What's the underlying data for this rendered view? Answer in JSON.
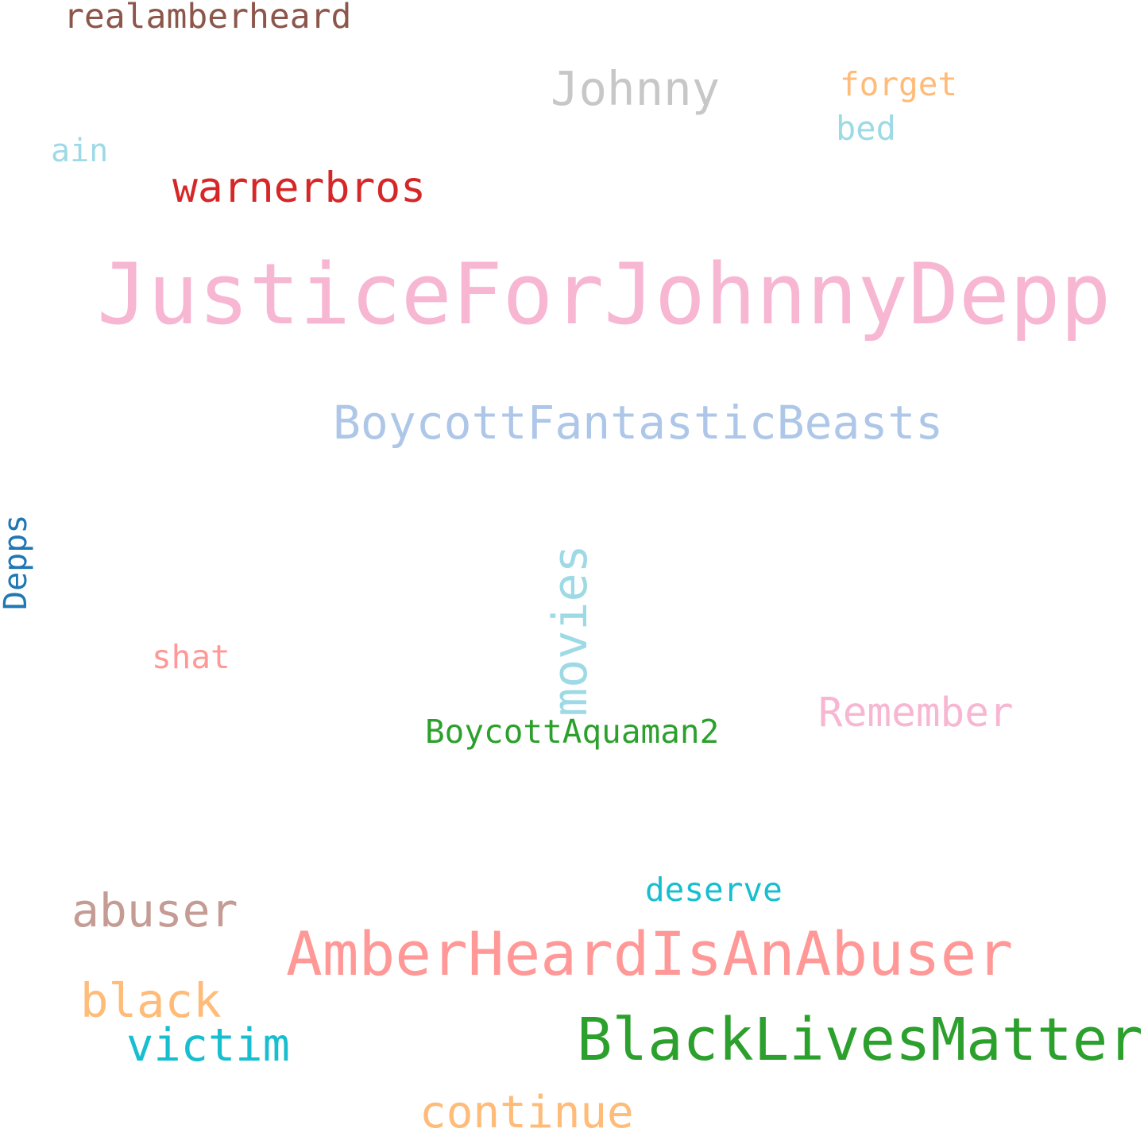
{
  "words": {
    "JusticeForJohnnyDepp": {
      "text": "JusticeForJohnnyDepp",
      "color": "#f7b6d2"
    },
    "AmberHeardIsAnAbuser": {
      "text": "AmberHeardIsAnAbuser",
      "color": "#ff9896"
    },
    "BlackLivesMatter": {
      "text": "BlackLivesMatter",
      "color": "#2ca02c"
    },
    "BoycottFantasticBeasts": {
      "text": "BoycottFantasticBeasts",
      "color": "#aec7e8"
    },
    "movies": {
      "text": "movies",
      "color": "#9edae5"
    },
    "warnerbros": {
      "text": "warnerbros",
      "color": "#d62728"
    },
    "Johnny": {
      "text": "Johnny",
      "color": "#c7c7c7"
    },
    "abuser": {
      "text": "abuser",
      "color": "#c49c94"
    },
    "black": {
      "text": "black",
      "color": "#ffbb78"
    },
    "victim": {
      "text": "victim",
      "color": "#17becf"
    },
    "continue": {
      "text": "continue",
      "color": "#ffbb78"
    },
    "Remember": {
      "text": "Remember",
      "color": "#f7b6d2"
    },
    "realamberheard": {
      "text": "realamberheard",
      "color": "#8c564b"
    },
    "forget": {
      "text": "forget",
      "color": "#ffbb78"
    },
    "bed": {
      "text": "bed",
      "color": "#9edae5"
    },
    "ain": {
      "text": "ain",
      "color": "#9edae5"
    },
    "Depps": {
      "text": "Depps",
      "color": "#1f77b4"
    },
    "shat": {
      "text": "shat",
      "color": "#ff9896"
    },
    "BoycottAquaman2": {
      "text": "BoycottAquaman2",
      "color": "#2ca02c"
    },
    "deserve": {
      "text": "deserve",
      "color": "#17becf"
    }
  }
}
